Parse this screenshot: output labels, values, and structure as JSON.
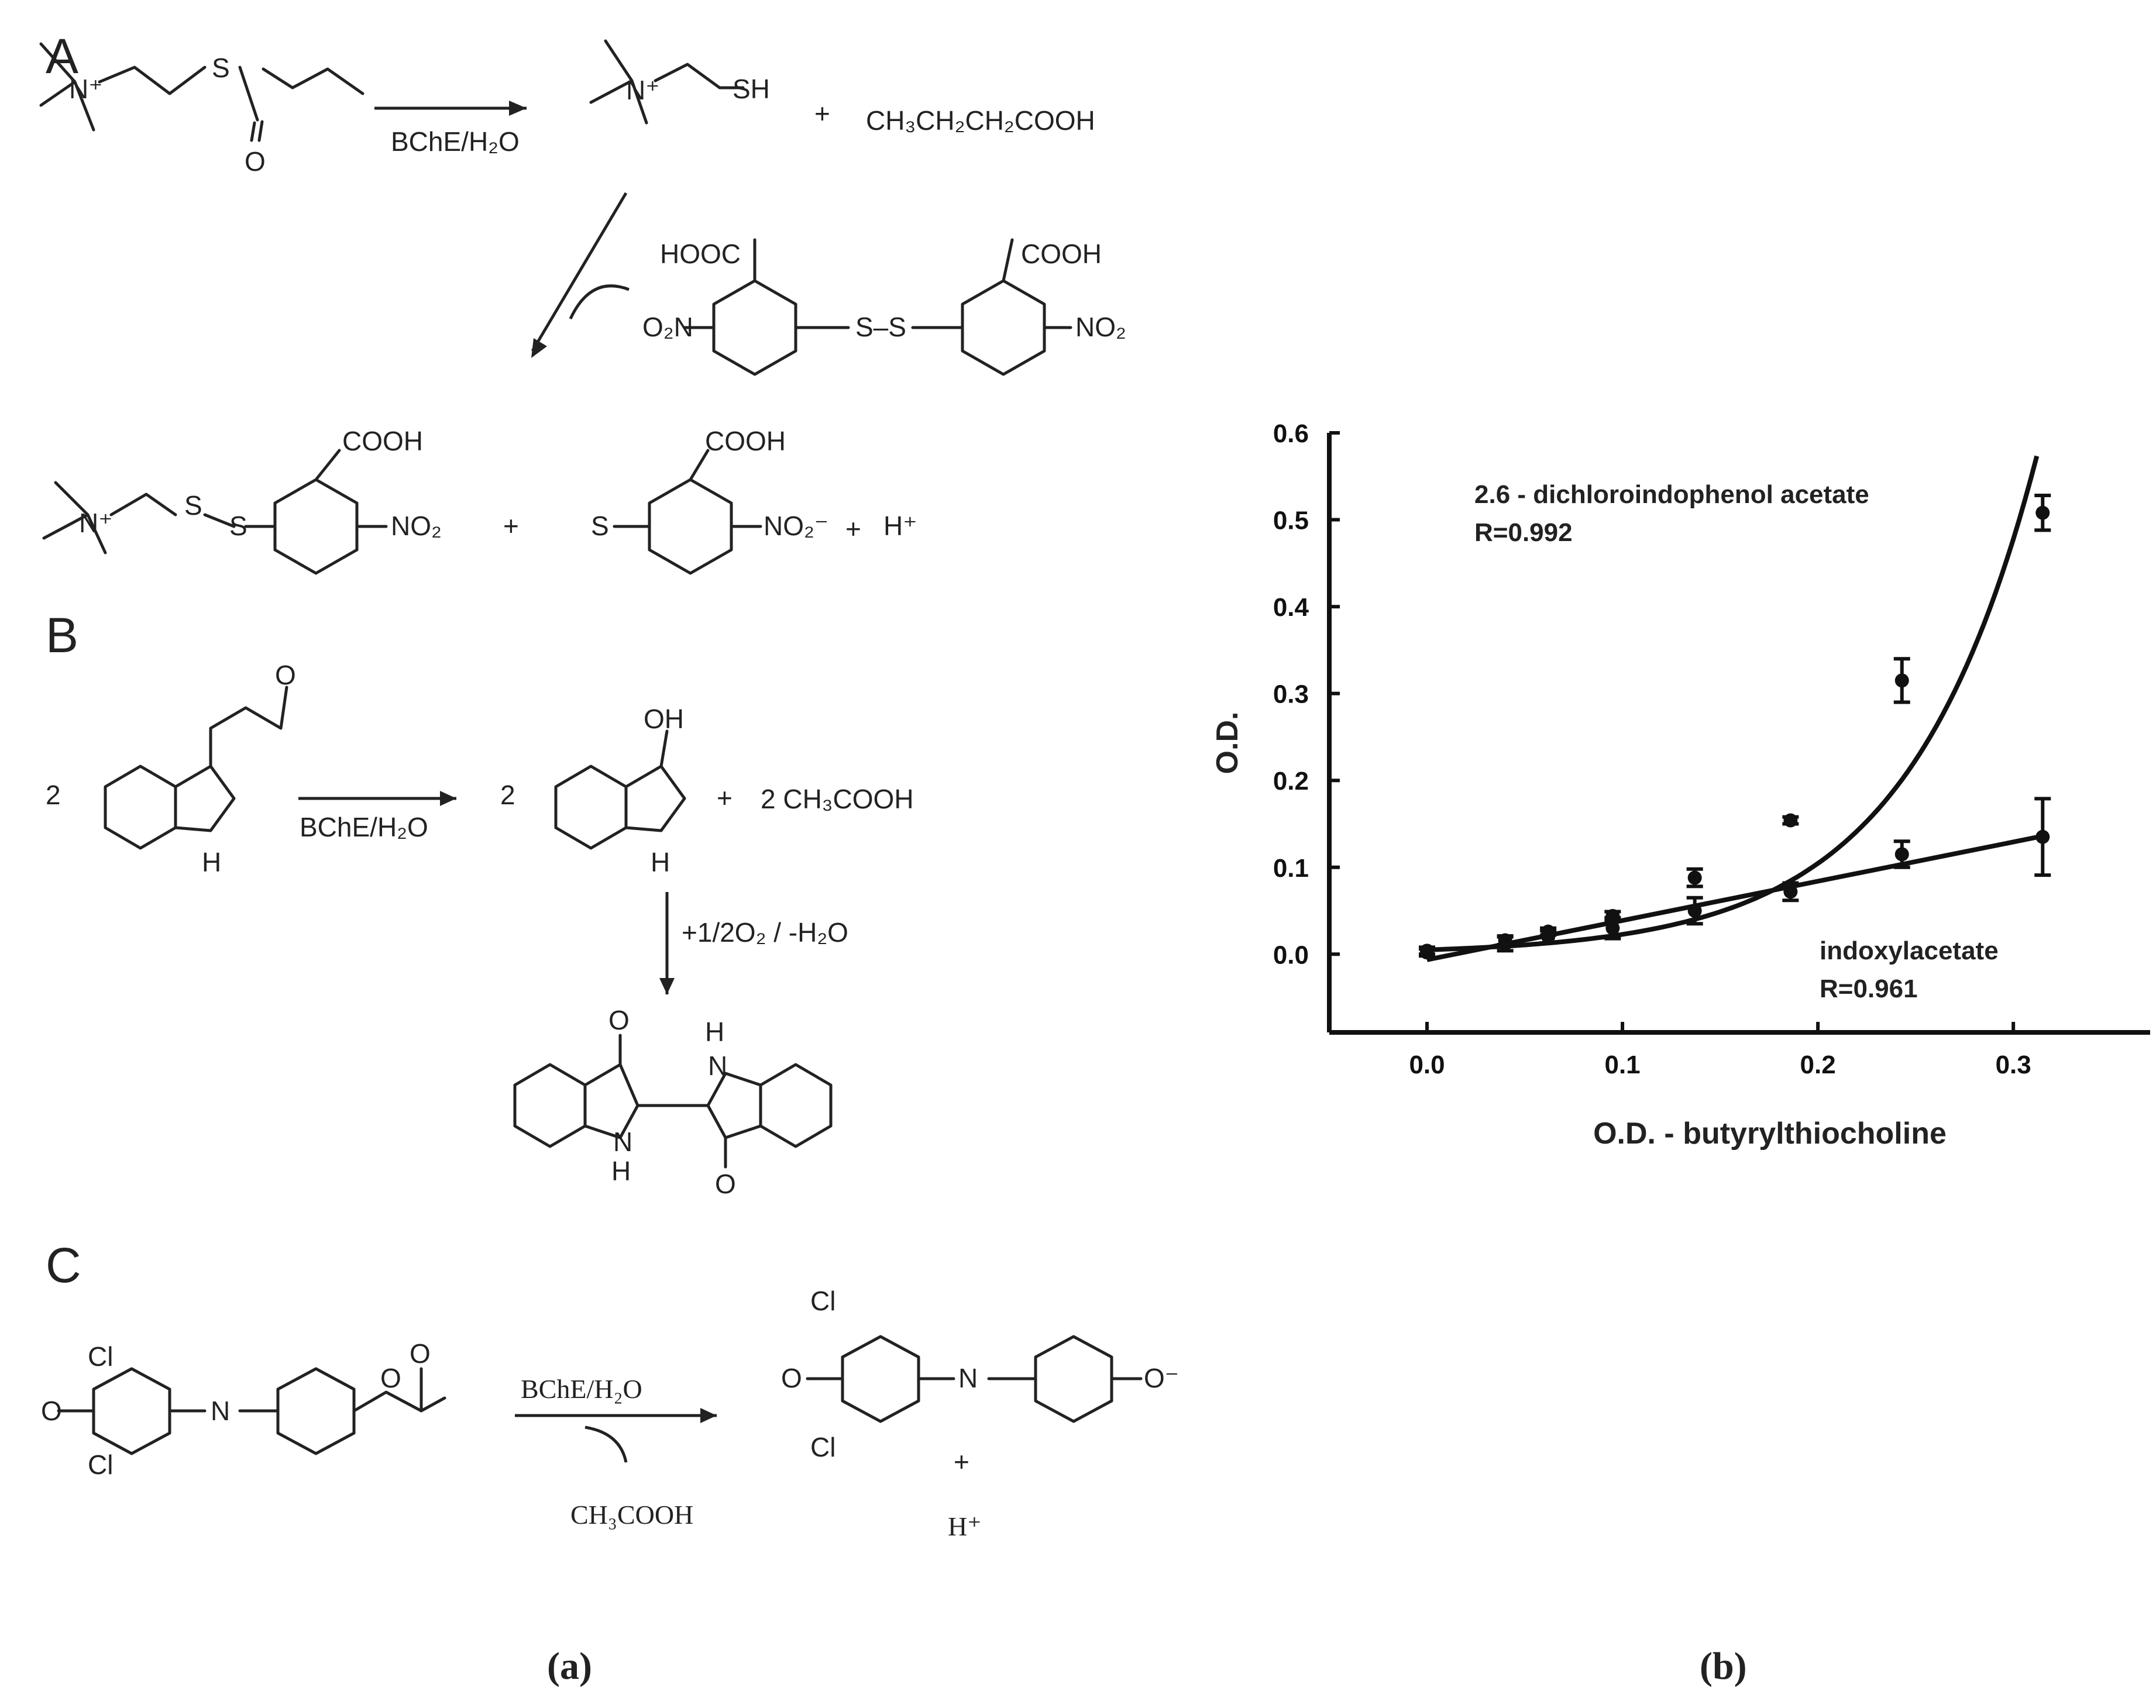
{
  "panel_a": {
    "section_a": "A",
    "section_b": "B",
    "section_c": "C",
    "caption": "(a)",
    "reaction_a": {
      "condition": "BChE/H₂O",
      "thiol_group": "SH",
      "plus": "+",
      "butyric_acid": "CH₃CH₂CH₂COOH",
      "dtnb_cooh_left": "HOOC",
      "dtnb_cooh_right": "COOH",
      "dtnb_no2_left": "O₂N",
      "dtnb_no2_right": "NO₂",
      "dtnb_ss": "S–S",
      "s_label": "S",
      "o_label": "O",
      "n_plus": "N⁺",
      "product_cooh": "COOH",
      "product_no2": "NO₂",
      "tnb_cooh": "COOH",
      "tnb_s": "S",
      "tnb_no2": "NO₂⁻",
      "proton": "H⁺"
    },
    "reaction_b": {
      "coefficient": "2",
      "condition": "BChE/H₂O",
      "nh": "H",
      "n": "N",
      "oh": "OH",
      "acetic": "2  CH₃COOH",
      "plus": "+",
      "oxidation": "+1/2O₂ / -H₂O",
      "o": "O"
    },
    "reaction_c": {
      "cl": "Cl",
      "o": "O",
      "n": "N",
      "condition": "BChE/H₂O",
      "byproduct": "CH₃COOH",
      "phenolate": "O⁻",
      "plus": "+",
      "proton": "H⁺"
    }
  },
  "panel_b": {
    "caption": "(b)"
  },
  "chart_data": {
    "type": "scatter",
    "xlabel": "O.D. - butyrylthiocholine",
    "ylabel": "O.D.",
    "xlim": [
      -0.05,
      0.37
    ],
    "ylim": [
      -0.09,
      0.6
    ],
    "x_ticks": [
      "0.0",
      "0.1",
      "0.2",
      "0.3"
    ],
    "x_tick_values": [
      0.0,
      0.1,
      0.2,
      0.3
    ],
    "y_ticks": [
      "0.0",
      "0.1",
      "0.2",
      "0.3",
      "0.4",
      "0.5",
      "0.6"
    ],
    "y_tick_values": [
      0.0,
      0.1,
      0.2,
      0.3,
      0.4,
      0.5,
      0.6
    ],
    "series": [
      {
        "label": "2.6 - dichloroindophenol acetate",
        "fit_label": "R=0.992",
        "fit": "exponential",
        "x": [
          0.0,
          0.04,
          0.062,
          0.095,
          0.137,
          0.186,
          0.243,
          0.315
        ],
        "y": [
          0.004,
          0.016,
          0.026,
          0.044,
          0.088,
          0.154,
          0.315,
          0.508
        ],
        "err": [
          0.004,
          0.005,
          0.004,
          0.005,
          0.01,
          0.004,
          0.025,
          0.02
        ]
      },
      {
        "label": "indoxylacetate",
        "fit_label": "R=0.961",
        "fit": "linear",
        "x": [
          0.0,
          0.04,
          0.062,
          0.095,
          0.137,
          0.186,
          0.243,
          0.315
        ],
        "y": [
          0.002,
          0.012,
          0.02,
          0.03,
          0.05,
          0.072,
          0.115,
          0.135
        ],
        "err": [
          0.004,
          0.008,
          0.007,
          0.012,
          0.015,
          0.01,
          0.015,
          0.044
        ]
      }
    ]
  }
}
